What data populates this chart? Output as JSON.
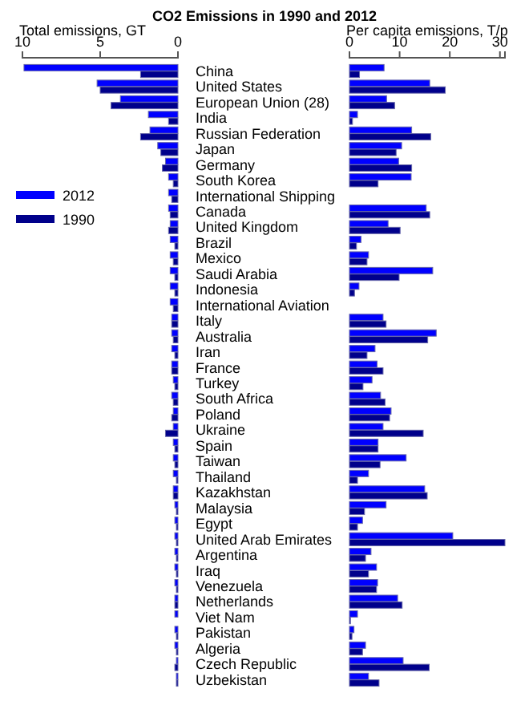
{
  "chart_data": [
    {
      "type": "bar",
      "orientation": "horizontal",
      "title": "CO2 Emissions in 1990 and 2012",
      "xlabel": "Total emissions, GT",
      "xlim": [
        10,
        0
      ],
      "xticks": [
        10,
        5,
        0
      ],
      "legend": "left",
      "grid": false,
      "categories": [
        "China",
        "United States",
        "European Union (28)",
        "India",
        "Russian Federation",
        "Japan",
        "Germany",
        "South Korea",
        "International Shipping",
        "Canada",
        "United Kingdom",
        "Brazil",
        "Mexico",
        "Saudi Arabia",
        "Indonesia",
        "International Aviation",
        "Italy",
        "Australia",
        "Iran",
        "France",
        "Turkey",
        "South Africa",
        "Poland",
        "Ukraine",
        "Spain",
        "Taiwan",
        "Thailand",
        "Kazakhstan",
        "Malaysia",
        "Egypt",
        "United Arab Emirates",
        "Argentina",
        "Iraq",
        "Venezuela",
        "Netherlands",
        "Viet Nam",
        "Pakistan",
        "Algeria",
        "Czech Republic",
        "Uzbekistan"
      ],
      "series": [
        {
          "name": "2012",
          "color": "#0000ff",
          "values": [
            9.9,
            5.2,
            3.7,
            1.9,
            1.8,
            1.3,
            0.8,
            0.6,
            0.6,
            0.6,
            0.5,
            0.5,
            0.5,
            0.5,
            0.5,
            0.5,
            0.4,
            0.4,
            0.4,
            0.4,
            0.3,
            0.4,
            0.3,
            0.3,
            0.3,
            0.3,
            0.3,
            0.3,
            0.2,
            0.2,
            0.2,
            0.2,
            0.2,
            0.2,
            0.2,
            0.2,
            0.2,
            0.2,
            0.1,
            0.1
          ]
        },
        {
          "name": "1990",
          "color": "#00008b",
          "values": [
            2.4,
            5.0,
            4.3,
            0.6,
            2.4,
            1.1,
            1.0,
            0.3,
            0.4,
            0.5,
            0.6,
            0.2,
            0.3,
            0.2,
            0.2,
            0.3,
            0.4,
            0.3,
            0.2,
            0.4,
            0.2,
            0.3,
            0.4,
            0.8,
            0.2,
            0.2,
            0.1,
            0.3,
            0.1,
            0.1,
            0.1,
            0.1,
            0.1,
            0.1,
            0.2,
            0.0,
            0.1,
            0.1,
            0.2,
            0.1
          ]
        }
      ]
    },
    {
      "type": "bar",
      "orientation": "horizontal",
      "xlabel": "Per capita emissions, T/p",
      "xlim": [
        0,
        31
      ],
      "xticks": [
        0,
        10,
        20,
        30
      ],
      "tick_labels": "x",
      "grid": false,
      "categories": [
        null,
        null,
        null,
        null,
        null,
        null,
        null,
        null,
        null,
        null,
        null,
        null,
        null,
        null,
        null,
        null,
        null,
        null,
        null,
        null,
        null,
        null,
        null,
        null,
        null,
        null,
        null,
        null,
        null,
        null,
        null,
        null,
        null,
        null,
        null,
        null,
        null,
        null,
        null,
        null
      ],
      "series": [
        {
          "color": "#0000ff",
          "values": [
            6.9,
            16.0,
            7.4,
            1.6,
            12.4,
            10.4,
            9.8,
            12.3,
            null,
            15.3,
            7.7,
            2.3,
            3.8,
            16.6,
            1.9,
            null,
            6.7,
            17.3,
            5.1,
            5.5,
            4.5,
            6.2,
            8.3,
            6.7,
            5.7,
            11.3,
            3.8,
            15.0,
            7.3,
            2.6,
            20.6,
            4.3,
            5.4,
            5.6,
            9.6,
            1.6,
            0.9,
            3.2,
            10.7,
            3.8
          ]
        },
        {
          "color": "#00008b",
          "values": [
            2.0,
            19.1,
            9.0,
            0.6,
            16.2,
            9.3,
            12.4,
            5.7,
            null,
            16.0,
            10.1,
            1.4,
            3.5,
            9.9,
            1.0,
            null,
            7.3,
            15.6,
            3.5,
            6.7,
            2.7,
            7.1,
            8.0,
            14.7,
            5.7,
            6.1,
            1.6,
            15.5,
            3.0,
            1.6,
            31.0,
            3.2,
            3.8,
            5.4,
            10.5,
            0.2,
            0.5,
            2.6,
            15.9,
            5.9
          ]
        }
      ]
    }
  ]
}
